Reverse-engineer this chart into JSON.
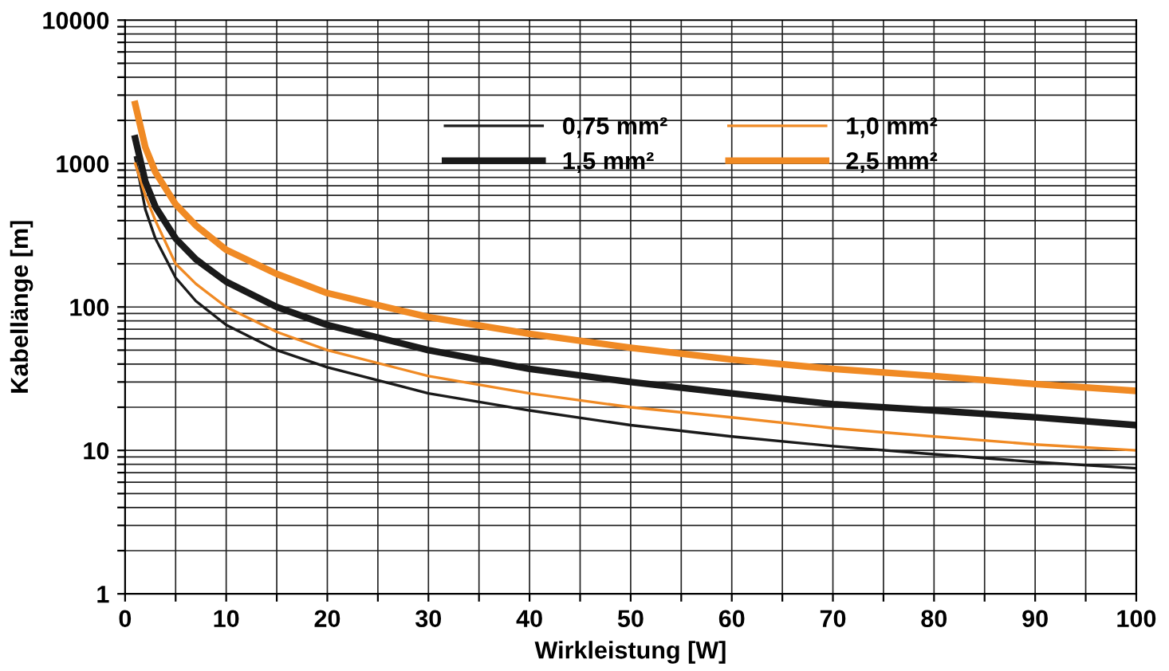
{
  "chart_data": {
    "type": "line",
    "xlabel": "Wirkleistung [W]",
    "ylabel": "Kabellänge [m]",
    "log": "y",
    "grid": true,
    "legend": "top",
    "marker": "none",
    "line_style": "solid",
    "xlim": [
      0,
      100
    ],
    "ylim": [
      1,
      10000
    ],
    "xticks": [
      0,
      {
        "value": 5,
        "label": null
      },
      10,
      {
        "value": 15,
        "label": null
      },
      20,
      {
        "value": 25,
        "label": null
      },
      30,
      {
        "value": 35,
        "label": null
      },
      40,
      {
        "value": 45,
        "label": null
      },
      50,
      {
        "value": 55,
        "label": null
      },
      60,
      {
        "value": 65,
        "label": null
      },
      70,
      {
        "value": 75,
        "label": null
      },
      80,
      {
        "value": 85,
        "label": null
      },
      90,
      {
        "value": 95,
        "label": null
      },
      100
    ],
    "yticks": [
      1,
      {
        "value": 2,
        "label": null
      },
      {
        "value": 3,
        "label": null
      },
      {
        "value": 4,
        "label": null
      },
      {
        "value": 5,
        "label": null
      },
      {
        "value": 6,
        "label": null
      },
      {
        "value": 7,
        "label": null
      },
      {
        "value": 8,
        "label": null
      },
      {
        "value": 9,
        "label": null
      },
      10,
      {
        "value": 20,
        "label": null
      },
      {
        "value": 30,
        "label": null
      },
      {
        "value": 40,
        "label": null
      },
      {
        "value": 50,
        "label": null
      },
      {
        "value": 60,
        "label": null
      },
      {
        "value": 70,
        "label": null
      },
      {
        "value": 80,
        "label": null
      },
      {
        "value": 90,
        "label": null
      },
      100,
      {
        "value": 200,
        "label": null
      },
      {
        "value": 300,
        "label": null
      },
      {
        "value": 400,
        "label": null
      },
      {
        "value": 500,
        "label": null
      },
      {
        "value": 600,
        "label": null
      },
      {
        "value": 700,
        "label": null
      },
      {
        "value": 800,
        "label": null
      },
      {
        "value": 900,
        "label": null
      },
      1000,
      {
        "value": 2000,
        "label": null
      },
      {
        "value": 3000,
        "label": null
      },
      {
        "value": 4000,
        "label": null
      },
      {
        "value": 5000,
        "label": null
      },
      {
        "value": 6000,
        "label": null
      },
      {
        "value": 7000,
        "label": null
      },
      {
        "value": 8000,
        "label": null
      },
      {
        "value": 9000,
        "label": null
      },
      10000
    ],
    "x": [
      1,
      2,
      3,
      5,
      7,
      10,
      15,
      20,
      30,
      40,
      50,
      60,
      70,
      80,
      90,
      100
    ],
    "series": [
      {
        "name": "0,75 mm²",
        "color": "#1a1a1a",
        "values": [
          1100,
          480,
          300,
          160,
          110,
          75,
          50,
          38,
          25,
          19,
          15,
          12.5,
          10.7,
          9.4,
          8.3,
          7.5
        ]
      },
      {
        "name": "1,0 mm²",
        "color": "#f08a24",
        "values": [
          1000,
          600,
          400,
          200,
          145,
          100,
          67,
          50,
          33,
          25,
          20,
          17,
          14.3,
          12.5,
          11,
          10
        ]
      },
      {
        "name": "1,5 mm²",
        "color": "#1a1a1a",
        "values": [
          1500,
          750,
          500,
          300,
          215,
          150,
          100,
          75,
          50,
          37,
          30,
          25,
          21,
          19,
          17,
          15
        ]
      },
      {
        "name": "2,5 mm²",
        "color": "#f08a24",
        "values": [
          2600,
          1300,
          870,
          520,
          370,
          250,
          170,
          125,
          85,
          65,
          52,
          43,
          37,
          33,
          29,
          26
        ]
      }
    ]
  }
}
